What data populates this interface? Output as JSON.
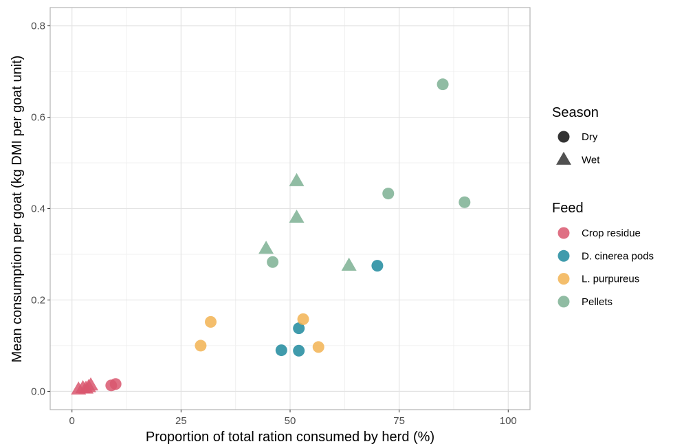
{
  "chart_data": {
    "type": "scatter",
    "xlabel": "Proportion of total ration consumed by herd (%)",
    "ylabel": "Mean consumption per goat (kg DMI per goat unit)",
    "xlim": [
      -5,
      105
    ],
    "ylim": [
      -0.04,
      0.84
    ],
    "x_ticks": [
      0,
      25,
      50,
      75,
      100
    ],
    "x_tick_labels": [
      "0",
      "25",
      "50",
      "75",
      "100"
    ],
    "y_ticks": [
      0.0,
      0.2,
      0.4,
      0.6,
      0.8
    ],
    "y_tick_labels": [
      "0.0",
      "0.2",
      "0.4",
      "0.6",
      "0.8"
    ],
    "x_minor_ticks": [
      12.5,
      37.5,
      62.5,
      87.5
    ],
    "y_minor_ticks": [
      0.1,
      0.3,
      0.5,
      0.7
    ],
    "grid": true,
    "legend_position": "right",
    "legends": {
      "season": {
        "title": "Season",
        "entries": [
          {
            "label": "Dry",
            "shape": "circle"
          },
          {
            "label": "Wet",
            "shape": "triangle"
          }
        ]
      },
      "feed": {
        "title": "Feed",
        "entries": [
          {
            "label": "Crop residue",
            "color": "#D9576E"
          },
          {
            "label": "D. cinerea pods",
            "color": "#1F8A9E"
          },
          {
            "label": "L. purpureus",
            "color": "#F2B352"
          },
          {
            "label": "Pellets",
            "color": "#7DB093"
          }
        ]
      }
    },
    "series": [
      {
        "feed": "Crop residue",
        "season": "Dry",
        "points": [
          [
            9,
            0.013
          ],
          [
            10,
            0.016
          ]
        ]
      },
      {
        "feed": "Crop residue",
        "season": "Wet",
        "points": [
          [
            1.5,
            0.004
          ],
          [
            2.5,
            0.007
          ],
          [
            3.2,
            0.006
          ],
          [
            3.8,
            0.009
          ],
          [
            4.3,
            0.013
          ]
        ]
      },
      {
        "feed": "D. cinerea pods",
        "season": "Dry",
        "points": [
          [
            48,
            0.09
          ],
          [
            52,
            0.089
          ],
          [
            52,
            0.138
          ],
          [
            70,
            0.275
          ]
        ]
      },
      {
        "feed": "L. purpureus",
        "season": "Dry",
        "points": [
          [
            29.5,
            0.1
          ],
          [
            31.8,
            0.152
          ],
          [
            53,
            0.158
          ],
          [
            56.5,
            0.097
          ]
        ]
      },
      {
        "feed": "Pellets",
        "season": "Dry",
        "points": [
          [
            46,
            0.283
          ],
          [
            72.5,
            0.433
          ],
          [
            85,
            0.672
          ],
          [
            90,
            0.414
          ]
        ]
      },
      {
        "feed": "Pellets",
        "season": "Wet",
        "points": [
          [
            44.5,
            0.312
          ],
          [
            51.5,
            0.46
          ],
          [
            51.5,
            0.38
          ],
          [
            63.5,
            0.275
          ]
        ]
      }
    ]
  }
}
